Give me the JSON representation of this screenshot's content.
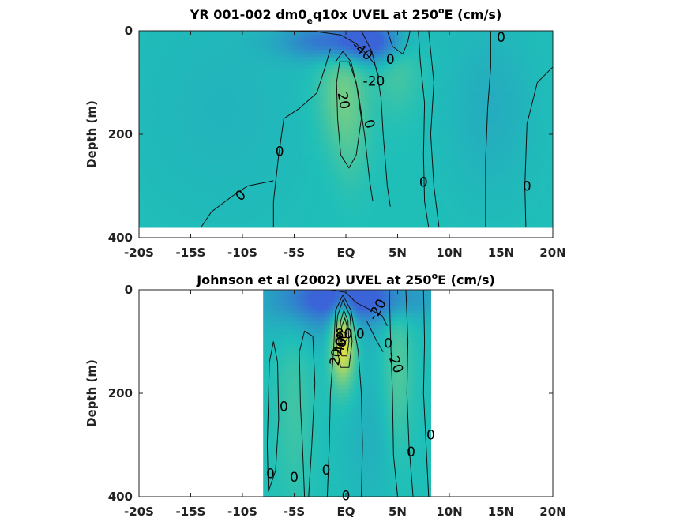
{
  "chart_data": [
    {
      "type": "heatmap",
      "title_parts": {
        "a": "YR 001-002 dm0",
        "sub": "e",
        "b": "q10x UVEL at 250",
        "sup": "o",
        "c": "E (cm/s)"
      },
      "ylabel": "Depth (m)",
      "xticks": [
        -20,
        -15,
        -10,
        -5,
        0,
        5,
        10,
        15,
        20
      ],
      "xtick_labels": [
        "-20S",
        "-15S",
        "-10S",
        "-5S",
        "EQ",
        "5N",
        "10N",
        "15N",
        "20N"
      ],
      "yticks": [
        0,
        200,
        400
      ],
      "ytick_labels": [
        "0",
        "200",
        "400"
      ],
      "xlim": [
        -20,
        20
      ],
      "ylim": [
        400,
        0
      ],
      "data_extent": {
        "x": [
          -20,
          20
        ],
        "depth": [
          0,
          380
        ]
      },
      "colors": {
        "low": "#3a64d8",
        "mid": "#1fbfb8",
        "high": "#f3e23a"
      },
      "features": [
        {
          "kind": "jet",
          "x": -0.3,
          "depth": 120,
          "value": 30,
          "sx": 1.6,
          "sd": 70
        },
        {
          "kind": "jet",
          "x": 5.0,
          "depth": 70,
          "value": 15,
          "sx": 1.5,
          "sd": 60
        },
        {
          "kind": "jet",
          "x": 0.5,
          "depth": 230,
          "value": 10,
          "sx": 1.2,
          "sd": 60
        },
        {
          "kind": "jet",
          "x": -1.0,
          "depth": 20,
          "value": -45,
          "sx": 3.5,
          "sd": 25
        },
        {
          "kind": "jet",
          "x": 2.5,
          "depth": 20,
          "value": -40,
          "sx": 2.0,
          "sd": 30
        },
        {
          "kind": "jet",
          "x": 14.0,
          "depth": 150,
          "value": -10,
          "sx": 3.0,
          "sd": 120
        },
        {
          "kind": "jet",
          "x": -12.0,
          "depth": 150,
          "value": -6,
          "sx": 6.0,
          "sd": 150
        }
      ],
      "contours": [
        {
          "points": [
            [
              -7.0,
              380
            ],
            [
              -7.0,
              330
            ],
            [
              -6.5,
              240
            ],
            [
              -6.0,
              170
            ],
            [
              -4.5,
              150
            ],
            [
              -2.8,
              120
            ],
            [
              -2.0,
              70
            ],
            [
              -1.5,
              35
            ]
          ]
        },
        {
          "points": [
            [
              -14.0,
              380
            ],
            [
              -13.0,
              350
            ],
            [
              -11.0,
              320
            ],
            [
              -9.5,
              300
            ],
            [
              -7.0,
              290
            ]
          ]
        },
        {
          "points": [
            [
              -1.0,
              60
            ],
            [
              -0.3,
              40
            ],
            [
              0.5,
              60
            ],
            [
              1.2,
              120
            ],
            [
              1.8,
              200
            ],
            [
              2.3,
              290
            ],
            [
              2.6,
              330
            ]
          ]
        },
        {
          "points": [
            [
              -0.5,
              240
            ],
            [
              -0.8,
              170
            ],
            [
              -0.9,
              100
            ],
            [
              -0.6,
              60
            ],
            [
              0.3,
              60
            ],
            [
              1.0,
              100
            ],
            [
              1.5,
              170
            ],
            [
              1.0,
              240
            ],
            [
              0.3,
              265
            ],
            [
              -0.5,
              240
            ]
          ]
        },
        {
          "points": [
            [
              1.5,
              0
            ],
            [
              2.5,
              40
            ],
            [
              3.0,
              80
            ],
            [
              3.4,
              130
            ],
            [
              3.6,
              200
            ],
            [
              4.0,
              300
            ],
            [
              4.3,
              340
            ]
          ]
        },
        {
          "points": [
            [
              -7.0,
              0
            ],
            [
              -3.0,
              1
            ],
            [
              -0.5,
              8
            ],
            [
              1.0,
              25
            ],
            [
              2.0,
              45
            ],
            [
              2.8,
              65
            ],
            [
              3.2,
              90
            ]
          ]
        },
        {
          "points": [
            [
              4.0,
              0
            ],
            [
              4.5,
              30
            ],
            [
              5.5,
              45
            ],
            [
              6.0,
              20
            ],
            [
              6.2,
              0
            ]
          ]
        },
        {
          "points": [
            [
              7.0,
              0
            ],
            [
              7.2,
              60
            ],
            [
              7.6,
              140
            ],
            [
              7.5,
              240
            ],
            [
              7.6,
              330
            ],
            [
              8.0,
              380
            ]
          ]
        },
        {
          "points": [
            [
              8.0,
              0
            ],
            [
              8.5,
              100
            ],
            [
              8.2,
              200
            ],
            [
              8.5,
              300
            ],
            [
              9.0,
              380
            ]
          ]
        },
        {
          "points": [
            [
              14.0,
              0
            ],
            [
              14.0,
              70
            ],
            [
              13.7,
              150
            ],
            [
              13.5,
              250
            ],
            [
              13.5,
              380
            ]
          ]
        },
        {
          "points": [
            [
              20.0,
              70
            ],
            [
              18.5,
              100
            ],
            [
              17.5,
              180
            ],
            [
              17.3,
              300
            ],
            [
              17.4,
              380
            ]
          ]
        }
      ],
      "contour_labels": [
        {
          "text": "0",
          "x": 15.0,
          "depth": 12,
          "rotate": 0
        },
        {
          "text": "-40",
          "x": 1.6,
          "depth": 38,
          "rotate": 40
        },
        {
          "text": "-20",
          "x": 2.7,
          "depth": 97,
          "rotate": 0
        },
        {
          "text": "0",
          "x": 4.3,
          "depth": 55,
          "rotate": 0
        },
        {
          "text": "20",
          "x": -0.2,
          "depth": 135,
          "rotate": 80
        },
        {
          "text": "0",
          "x": 2.3,
          "depth": 180,
          "rotate": 70
        },
        {
          "text": "0",
          "x": -6.4,
          "depth": 233,
          "rotate": 0
        },
        {
          "text": "0",
          "x": -10.2,
          "depth": 318,
          "rotate": -40
        },
        {
          "text": "0",
          "x": 7.5,
          "depth": 292,
          "rotate": 0
        },
        {
          "text": "0",
          "x": 17.5,
          "depth": 300,
          "rotate": 0
        }
      ]
    },
    {
      "type": "heatmap",
      "title_parts": {
        "a": "Johnson et al (2002) UVEL at 250",
        "sup": "o",
        "c": "E (cm/s)"
      },
      "ylabel": "Depth (m)",
      "xticks": [
        -20,
        -15,
        -10,
        -5,
        0,
        5,
        10,
        15,
        20
      ],
      "xtick_labels": [
        "-20S",
        "-15S",
        "-10S",
        "-5S",
        "EQ",
        "5N",
        "10N",
        "15N",
        "20N"
      ],
      "yticks": [
        0,
        200,
        400
      ],
      "ytick_labels": [
        "0",
        "200",
        "400"
      ],
      "xlim": [
        -20,
        20
      ],
      "ylim": [
        400,
        0
      ],
      "data_extent": {
        "x": [
          -8,
          8.2
        ],
        "depth": [
          0,
          400
        ]
      },
      "colors": {
        "low": "#3a64d8",
        "mid": "#1fbfb8",
        "high": "#f3e23a"
      },
      "features": [
        {
          "kind": "jet",
          "x": -0.3,
          "depth": 100,
          "value": 85,
          "sx": 0.8,
          "sd": 55
        },
        {
          "kind": "jet",
          "x": 5.0,
          "depth": 150,
          "value": 20,
          "sx": 1.0,
          "sd": 110
        },
        {
          "kind": "jet",
          "x": -5.0,
          "depth": 220,
          "value": 12,
          "sx": 1.2,
          "sd": 130
        },
        {
          "kind": "jet",
          "x": 1.0,
          "depth": 15,
          "value": -45,
          "sx": 4.5,
          "sd": 30
        },
        {
          "kind": "jet",
          "x": -2.0,
          "depth": 20,
          "value": -25,
          "sx": 4.0,
          "sd": 60
        },
        {
          "kind": "jet",
          "x": 2.5,
          "depth": 280,
          "value": -8,
          "sx": 2.0,
          "sd": 100
        }
      ],
      "contours": [
        {
          "points": [
            [
              -7.5,
              390
            ],
            [
              -7.6,
              300
            ],
            [
              -7.5,
              220
            ],
            [
              -7.4,
              140
            ],
            [
              -7.0,
              100
            ],
            [
              -6.6,
              140
            ],
            [
              -6.5,
              250
            ],
            [
              -6.8,
              350
            ],
            [
              -7.5,
              390
            ]
          ]
        },
        {
          "points": [
            [
              -4.0,
              400
            ],
            [
              -4.2,
              300
            ],
            [
              -4.4,
              220
            ],
            [
              -4.5,
              120
            ],
            [
              -4.0,
              80
            ],
            [
              -3.2,
              90
            ],
            [
              -3.0,
              180
            ],
            [
              -3.3,
              300
            ],
            [
              -3.6,
              400
            ]
          ]
        },
        {
          "points": [
            [
              -1.8,
              400
            ],
            [
              -1.6,
              300
            ],
            [
              -1.5,
              200
            ],
            [
              -1.2,
              120
            ],
            [
              -1.0,
              40
            ],
            [
              -0.3,
              10
            ],
            [
              0.5,
              40
            ],
            [
              1.2,
              120
            ],
            [
              1.5,
              200
            ],
            [
              1.6,
              300
            ],
            [
              1.5,
              400
            ]
          ]
        },
        {
          "points": [
            [
              -0.5,
              150
            ],
            [
              -1.0,
              100
            ],
            [
              -0.8,
              50
            ],
            [
              -0.3,
              20
            ],
            [
              0.4,
              50
            ],
            [
              0.6,
              100
            ],
            [
              0.3,
              150
            ],
            [
              -0.5,
              150
            ]
          ]
        },
        {
          "points": [
            [
              -0.4,
              128
            ],
            [
              -0.7,
              100
            ],
            [
              -0.5,
              60
            ],
            [
              -0.2,
              40
            ],
            [
              0.2,
              60
            ],
            [
              0.3,
              100
            ],
            [
              0.1,
              128
            ],
            [
              -0.4,
              128
            ]
          ]
        },
        {
          "points": [
            [
              -0.3,
              110
            ],
            [
              -0.5,
              90
            ],
            [
              -0.4,
              70
            ],
            [
              -0.1,
              55
            ],
            [
              0.1,
              70
            ],
            [
              0.1,
              95
            ],
            [
              -0.3,
              110
            ]
          ]
        },
        {
          "points": [
            [
              -1.5,
              0
            ],
            [
              0.0,
              5
            ],
            [
              1.0,
              25
            ],
            [
              2.5,
              40
            ],
            [
              3.5,
              50
            ],
            [
              4.0,
              70
            ]
          ]
        },
        {
          "points": [
            [
              2.0,
              60
            ],
            [
              2.5,
              80
            ],
            [
              3.0,
              100
            ],
            [
              3.6,
              120
            ]
          ]
        },
        {
          "points": [
            [
              4.2,
              0
            ],
            [
              4.3,
              80
            ],
            [
              4.5,
              200
            ],
            [
              4.6,
              320
            ],
            [
              5.0,
              400
            ]
          ]
        },
        {
          "points": [
            [
              5.8,
              0
            ],
            [
              6.0,
              100
            ],
            [
              5.9,
              200
            ],
            [
              6.1,
              300
            ],
            [
              6.5,
              400
            ]
          ]
        },
        {
          "points": [
            [
              7.5,
              0
            ],
            [
              7.6,
              100
            ],
            [
              7.5,
              200
            ],
            [
              7.8,
              320
            ],
            [
              8.0,
              400
            ]
          ]
        }
      ],
      "contour_labels": [
        {
          "text": "-20",
          "x": 3.0,
          "depth": 38,
          "rotate": -60
        },
        {
          "text": "0",
          "x": 1.4,
          "depth": 85,
          "rotate": 0
        },
        {
          "text": "0",
          "x": 4.1,
          "depth": 103,
          "rotate": 0
        },
        {
          "text": "-20",
          "x": 4.8,
          "depth": 140,
          "rotate": 70
        },
        {
          "text": "80",
          "x": -0.2,
          "depth": 85,
          "rotate": 0
        },
        {
          "text": "40",
          "x": -0.6,
          "depth": 108,
          "rotate": -80
        },
        {
          "text": "60",
          "x": -0.4,
          "depth": 95,
          "rotate": -80
        },
        {
          "text": "20",
          "x": -1.0,
          "depth": 130,
          "rotate": -80
        },
        {
          "text": "0",
          "x": -6.0,
          "depth": 225,
          "rotate": 0
        },
        {
          "text": "0",
          "x": 8.2,
          "depth": 280,
          "rotate": 0
        },
        {
          "text": "0",
          "x": 6.3,
          "depth": 313,
          "rotate": 0
        },
        {
          "text": "0",
          "x": -7.3,
          "depth": 355,
          "rotate": 0
        },
        {
          "text": "0",
          "x": -5.0,
          "depth": 362,
          "rotate": 0
        },
        {
          "text": "0",
          "x": -1.9,
          "depth": 348,
          "rotate": 0
        },
        {
          "text": "0",
          "x": 0.0,
          "depth": 398,
          "rotate": 0
        }
      ]
    }
  ]
}
